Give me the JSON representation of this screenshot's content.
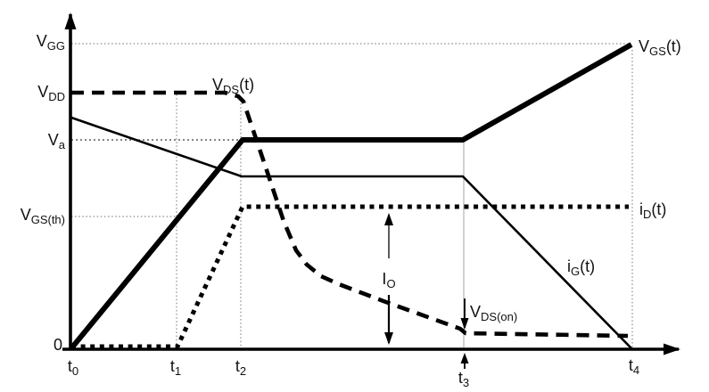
{
  "colors": {
    "ink": "#000000",
    "background": "#ffffff",
    "grid": "#8a8a8a",
    "grid_light": "#b5b5b5",
    "grid_dark": "#3a3a3a",
    "annotation": "#333333"
  },
  "labels": {
    "v_gg": {
      "main": "V",
      "sub": "GG"
    },
    "v_dd": {
      "main": "V",
      "sub": "DD"
    },
    "v_a": {
      "main": "V",
      "sub": "a"
    },
    "v_gs_th": {
      "main": "V",
      "sub": "GS(th)"
    },
    "zero": {
      "main": "0"
    },
    "t0": {
      "main": "t",
      "sub": "0"
    },
    "t1": {
      "main": "t",
      "sub": "1"
    },
    "t2": {
      "main": "t",
      "sub": "2"
    },
    "t3": {
      "main": "t",
      "sub": "3"
    },
    "t4": {
      "main": "t",
      "sub": "4"
    },
    "v_ds_t": {
      "main": "V",
      "sub": "DS",
      "suffix": "(t)"
    },
    "v_gs_t": {
      "main": "V",
      "sub": "GS",
      "suffix": "(t)"
    },
    "i_d_t": {
      "main": "i",
      "sub": "D",
      "suffix": "(t)"
    },
    "i_g_t": {
      "main": "i",
      "sub": "G",
      "suffix": "(t)"
    },
    "i_o": {
      "main": "I",
      "sub": "O"
    },
    "v_ds_on": {
      "main": "V",
      "sub": "DS(on)"
    }
  },
  "chart_data": {
    "type": "line",
    "title": "",
    "x_tick_labels": [
      "t0",
      "t1",
      "t2",
      "t3",
      "t4"
    ],
    "y_tick_labels_top_to_bottom": [
      "VGG",
      "VDD",
      "Va",
      "VGS(th)",
      "0"
    ],
    "legend": "none; curves labeled inline on plot",
    "grid": "dotted guide lines at VGG, Va, VGS(th) levels and at t1, t2, t3, t4",
    "series": [
      {
        "name": "VGS(t)",
        "line_style": "thick solid",
        "points": [
          {
            "x": "t0",
            "y": "0"
          },
          {
            "x": "t2",
            "y": "Va"
          },
          {
            "x": "t3",
            "y": "Va"
          },
          {
            "x": "t4",
            "y": "VGG"
          }
        ],
        "note": "linear rise from 0 crossing VGS(th) at t1; Miller plateau at Va from t2 to t3; then rises to VGG at t4"
      },
      {
        "name": "VDS(t)",
        "line_style": "thick dashed",
        "points": [
          {
            "x": "t0",
            "y": "VDD"
          },
          {
            "x": "t2",
            "y": "VDD"
          },
          {
            "x": "t3",
            "y": "VDS(on)"
          },
          {
            "x": "t4",
            "y": "VDS(on)"
          }
        ],
        "note": "flat at VDD until t2, steep fall curving into gradual slope, settles at VDS(on) from t3 onward"
      },
      {
        "name": "iD(t)",
        "line_style": "thick dotted",
        "points": [
          {
            "x": "t0",
            "y": "0"
          },
          {
            "x": "t1",
            "y": "0"
          },
          {
            "x": "t2",
            "y": "IO"
          },
          {
            "x": "t4",
            "y": "IO"
          }
        ],
        "note": "zero until t1, linear rise t1 to t2, constant at IO afterwards"
      },
      {
        "name": "iG(t)",
        "line_style": "thin solid",
        "points": [
          {
            "x": "t0",
            "y": "unlabeled value between VDD and Va"
          },
          {
            "x": "t2",
            "y": "plateau slightly below Va"
          },
          {
            "x": "t3",
            "y": "plateau slightly below Va"
          },
          {
            "x": "t4",
            "y": "0"
          }
        ],
        "note": "declines to t2, constant during Miller plateau t2 to t3, declines to 0 at t4"
      }
    ],
    "annotations": [
      {
        "label": "IO",
        "type": "double-headed vertical arrow",
        "from": "time axis (0)",
        "to": "iD(t) plateau",
        "x_location": "between t2 and t3"
      },
      {
        "label": "VDS(on)",
        "type": "downward arrow",
        "points_to": "final VDS level at t3"
      },
      {
        "label": "t3",
        "type": "upward arrow below axis",
        "points_to": "t3 position on time axis"
      }
    ]
  },
  "geometry": {
    "view": [
      795,
      440
    ],
    "lines": [
      {
        "name": "gridline-vgg",
        "pts": [
          [
            80,
            49
          ],
          [
            704,
            49
          ]
        ],
        "w": 1.2,
        "color": "#8a8a8a",
        "dash": "1.5 2.6"
      },
      {
        "name": "gridline-va",
        "pts": [
          [
            80,
            157
          ],
          [
            268,
            157
          ]
        ],
        "w": 1.3,
        "color": "#3a3a3a",
        "dash": "2 3"
      },
      {
        "name": "gridline-vgsth",
        "pts": [
          [
            80,
            243
          ],
          [
            197,
            243
          ]
        ],
        "w": 1.2,
        "color": "#8a8a8a",
        "dash": "1.5 2.6"
      },
      {
        "name": "gridline-t1",
        "pts": [
          [
            198,
            106
          ],
          [
            198,
            390
          ]
        ],
        "w": 1.2,
        "color": "#8a8a8a",
        "dash": "1.5 2.6"
      },
      {
        "name": "gridline-t2",
        "pts": [
          [
            270,
            112
          ],
          [
            270,
            390
          ]
        ],
        "w": 1.2,
        "color": "#8a8a8a",
        "dash": "1.5 2.6"
      },
      {
        "name": "gridline-t3",
        "pts": [
          [
            520,
            158
          ],
          [
            520,
            390
          ]
        ],
        "w": 1.2,
        "color": "#b5b5b5"
      },
      {
        "name": "gridline-t4",
        "pts": [
          [
            709,
            56
          ],
          [
            709,
            390
          ]
        ],
        "w": 1.2,
        "color": "#8a8a8a",
        "dash": "1.5 2.6"
      },
      {
        "name": "curve-vds",
        "pts": [
          [
            80,
            104
          ],
          [
            252,
            104
          ],
          [
            267,
            108
          ],
          [
            273,
            114
          ],
          [
            298,
            188
          ],
          [
            318,
            248
          ],
          [
            332,
            281
          ],
          [
            344,
            297
          ],
          [
            360,
            310
          ],
          [
            380,
            319
          ],
          [
            430,
            338
          ],
          [
            480,
            356
          ],
          [
            516,
            369
          ],
          [
            522,
            374
          ],
          [
            704,
            377
          ]
        ],
        "w": 4.6,
        "dash": "14 9"
      },
      {
        "name": "curve-id",
        "pts": [
          [
            80,
            389
          ],
          [
            199,
            389
          ],
          [
            272,
            232
          ],
          [
            705,
            232
          ]
        ],
        "w": 5,
        "dash": "5 5.6"
      },
      {
        "name": "curve-ig",
        "pts": [
          [
            80,
            132
          ],
          [
            271,
            198
          ],
          [
            519,
            198
          ],
          [
            708,
            391
          ]
        ],
        "w": 2.6
      },
      {
        "name": "curve-vgs",
        "pts": [
          [
            80,
            391
          ],
          [
            272,
            157
          ],
          [
            519,
            157
          ],
          [
            708,
            50
          ]
        ],
        "w": 6
      },
      {
        "name": "y-axis",
        "pts": [
          [
            79,
            392
          ],
          [
            79,
            16
          ]
        ],
        "w": 3.6,
        "arrow": true,
        "head": [
          17,
          6.5
        ]
      },
      {
        "name": "x-axis",
        "pts": [
          [
            70,
            392
          ],
          [
            761,
            392
          ]
        ],
        "w": 3.6,
        "arrow": true,
        "head": [
          17,
          6.5
        ]
      },
      {
        "name": "io-arrow-up",
        "pts": [
          [
            436,
            290
          ],
          [
            436,
            241
          ]
        ],
        "w": 1.6,
        "color": "#333333",
        "arrow": true,
        "head": [
          12,
          5
        ]
      },
      {
        "name": "io-arrow-down",
        "pts": [
          [
            436,
            331
          ],
          [
            436,
            385
          ]
        ],
        "w": 2.2,
        "arrow": true,
        "head": [
          12,
          5
        ]
      },
      {
        "name": "vdson-arrow",
        "pts": [
          [
            521,
            335
          ],
          [
            521,
            368
          ]
        ],
        "w": 1.8,
        "arrow": true,
        "head": [
          11,
          4.5
        ]
      },
      {
        "name": "t3-arrow",
        "pts": [
          [
            521,
            414
          ],
          [
            521,
            398
          ]
        ],
        "w": 1.8,
        "arrow": true,
        "head": [
          10,
          4.5
        ]
      }
    ]
  }
}
